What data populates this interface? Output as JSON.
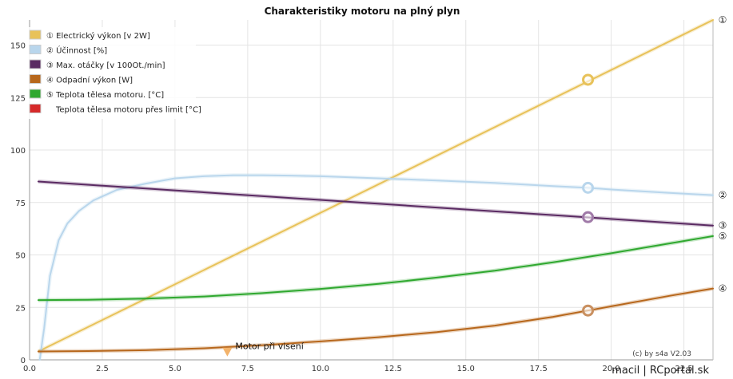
{
  "chart_data": {
    "type": "line",
    "title": "Charakteristiky motoru na plný plyn",
    "xlabel": "",
    "ylabel": "",
    "xlim": [
      0,
      23.5
    ],
    "ylim": [
      0,
      162
    ],
    "x_ticks": [
      "0.0",
      "2.5",
      "5.0",
      "7.5",
      "10.0",
      "12.5",
      "15.0",
      "17.5",
      "20.0",
      "22.5"
    ],
    "y_ticks": [
      "0",
      "25",
      "50",
      "75",
      "100",
      "125",
      "150"
    ],
    "grid": true,
    "legend_position": "top-left",
    "legend": [
      {
        "label": "① Electrický výkon [v 2W]",
        "color": "#e8c25a"
      },
      {
        "label": "② Účinnost [%]",
        "color": "#b9d6ec"
      },
      {
        "label": "③ Max. otáčky [v 100Ot./min]",
        "color": "#5a2a62"
      },
      {
        "label": "④ Odpadní výkon [W]",
        "color": "#b7671c"
      },
      {
        "label": "⑤ Teplota tělesa motoru. [°C]",
        "color": "#2fa82f"
      },
      {
        "label": "Teplota tělesa motoru přes limit [°C]",
        "color": "#d62a2a"
      }
    ],
    "series": [
      {
        "name": "① Electrický výkon [v 2W]",
        "color": "#e8c25a",
        "end_label": "①",
        "x": [
          0.3,
          23.5
        ],
        "y": [
          4,
          162
        ]
      },
      {
        "name": "② Účinnost [%]",
        "color": "#b9d6ec",
        "end_label": "②",
        "x": [
          0.35,
          0.5,
          0.7,
          1.0,
          1.3,
          1.7,
          2.2,
          3.0,
          4.0,
          5.0,
          6.0,
          7.0,
          8.0,
          9.0,
          10.0,
          12.0,
          14.0,
          16.0,
          18.0,
          19.2,
          20.0,
          22.0,
          23.5
        ],
        "y": [
          0,
          15,
          40,
          57,
          65,
          71,
          76,
          81,
          84,
          86.5,
          87.5,
          88,
          88,
          87.8,
          87.5,
          86.5,
          85.5,
          84.3,
          82.8,
          82,
          81.2,
          79.6,
          78.5
        ]
      },
      {
        "name": "③ Max. otáčky [v 100Ot./min]",
        "color": "#5a2a62",
        "end_label": "③",
        "x": [
          0.3,
          23.5
        ],
        "y": [
          85,
          64
        ]
      },
      {
        "name": "④ Odpadní výkon [W]",
        "color": "#b7671c",
        "end_label": "④",
        "x": [
          0.3,
          2,
          4,
          6,
          8,
          10,
          12,
          14,
          16,
          18,
          19.2,
          20,
          22,
          23.5
        ],
        "y": [
          4,
          4.2,
          4.6,
          5.5,
          7,
          8.8,
          10.8,
          13.2,
          16.3,
          20.5,
          23.5,
          25.5,
          30.5,
          34
        ]
      },
      {
        "name": "⑤ Teplota tělesa motoru. [°C]",
        "color": "#2fa82f",
        "end_label": "⑤",
        "x": [
          0.3,
          2,
          4,
          6,
          8,
          10,
          12,
          14,
          16,
          18,
          20,
          22,
          23.5
        ],
        "y": [
          28.5,
          28.6,
          29.2,
          30.2,
          31.8,
          33.8,
          36.2,
          39.2,
          42.5,
          46.5,
          50.8,
          55.5,
          59
        ]
      }
    ],
    "markers": [
      {
        "series": "① Electrický výkon [v 2W]",
        "x": 19.2,
        "y": 133.5,
        "color": "#e8c25a"
      },
      {
        "series": "② Účinnost [%]",
        "x": 19.2,
        "y": 82,
        "color": "#b9d6ec"
      },
      {
        "series": "③ Max. otáčky [v 100Ot./min]",
        "x": 19.2,
        "y": 68,
        "color": "#a07aa8"
      },
      {
        "series": "④ Odpadní výkon [W]",
        "x": 19.2,
        "y": 23.5,
        "color": "#c99060"
      }
    ],
    "annotations": [
      {
        "text": "Motor při visení",
        "x": 6.8,
        "y": 2,
        "marker_color": "#f3b36b"
      },
      {
        "text": "(c) by s4a  V2.03"
      }
    ]
  },
  "footer": {
    "credit": "macil | RCportal.sk"
  }
}
